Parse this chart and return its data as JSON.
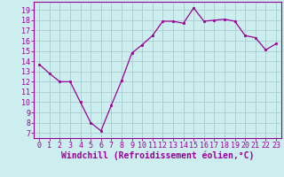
{
  "x": [
    0,
    1,
    2,
    3,
    4,
    5,
    6,
    7,
    8,
    9,
    10,
    11,
    12,
    13,
    14,
    15,
    16,
    17,
    18,
    19,
    20,
    21,
    22,
    23
  ],
  "y": [
    13.7,
    12.8,
    12.0,
    12.0,
    10.0,
    8.0,
    7.2,
    9.7,
    12.1,
    14.8,
    15.6,
    16.5,
    17.9,
    17.9,
    17.7,
    19.2,
    17.9,
    18.0,
    18.1,
    17.9,
    16.5,
    16.3,
    15.1,
    15.7
  ],
  "line_color": "#990099",
  "marker": "s",
  "markersize": 2,
  "linewidth": 0.9,
  "bg_color": "#cceeee",
  "grid_color": "#aacccc",
  "xlabel": "Windchill (Refroidissement éolien,°C)",
  "xlabel_color": "#990099",
  "tick_color": "#990099",
  "ylabel_ticks": [
    7,
    8,
    9,
    10,
    11,
    12,
    13,
    14,
    15,
    16,
    17,
    18,
    19
  ],
  "xlim": [
    -0.5,
    23.5
  ],
  "ylim": [
    6.5,
    19.8
  ],
  "xticks": [
    0,
    1,
    2,
    3,
    4,
    5,
    6,
    7,
    8,
    9,
    10,
    11,
    12,
    13,
    14,
    15,
    16,
    17,
    18,
    19,
    20,
    21,
    22,
    23
  ],
  "xlabel_fontsize": 7,
  "tick_fontsize": 6,
  "title_fontsize": 7
}
